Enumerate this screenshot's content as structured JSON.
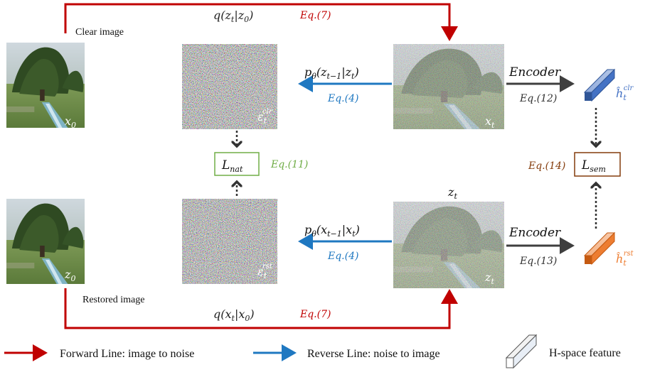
{
  "labels": {
    "clear_image": "Clear image",
    "restored_image": "Restored image",
    "x0": "x",
    "x0_sub": "0",
    "z0": "z",
    "z0_sub": "0",
    "xt": "x",
    "xt_sub": "t",
    "zt": "z",
    "zt_sub": "t",
    "zt_top": "z",
    "zt_top_sub": "t",
    "eps_clr_base": "ε",
    "eps_clr_sub": "t",
    "eps_clr_sup": "clr",
    "eps_rst_base": "ε",
    "eps_rst_sub": "t",
    "eps_rst_sup": "rst",
    "h_clr_base": "ĥ",
    "h_clr_sub": "t",
    "h_clr_sup": "clr",
    "h_rst_base": "ĥ",
    "h_rst_sub": "t",
    "h_rst_sup": "rst"
  },
  "equations": {
    "q_top": "q(z",
    "q_top_sub": "t",
    "q_top_mid": "|z",
    "q_top_sub2": "0",
    "q_top_end": ")",
    "q_top_ref": "Eq.(7)",
    "q_bottom": "q(x",
    "q_bottom_sub": "t",
    "q_bottom_mid": "|x",
    "q_bottom_sub2": "0",
    "q_bottom_end": ")",
    "q_bottom_ref": "Eq.(7)",
    "p_top_a": "p",
    "p_top_theta": "θ",
    "p_top_b": "(z",
    "p_top_sub1": "t−1",
    "p_top_c": "|z",
    "p_top_sub2": "t",
    "p_top_d": ")",
    "p_top_ref": "Eq.(4)",
    "p_bottom_a": "p",
    "p_bottom_theta": "θ",
    "p_bottom_b": "(x",
    "p_bottom_sub1": "t−1",
    "p_bottom_c": "|x",
    "p_bottom_sub2": "t",
    "p_bottom_d": ")",
    "p_bottom_ref": "Eq.(4)",
    "encoder_top": "Encoder",
    "encoder_top_ref": "Eq.(12)",
    "encoder_bottom": "Encoder",
    "encoder_bottom_ref": "Eq.(13)",
    "l_nat": "L",
    "l_nat_sub": "nat",
    "l_nat_ref": "Eq.(11)",
    "l_sem": "L",
    "l_sem_sub": "sem",
    "l_sem_ref": "Eq.(14)"
  },
  "legend": {
    "forward": "Forward Line: image to noise",
    "reverse": "Reverse Line: noise to image",
    "hspace": "H-space feature"
  },
  "colors": {
    "forward": "#c00000",
    "reverse": "#1f78c1",
    "encoder_arrow": "#3f3f3f",
    "l_nat": "#70ad47",
    "l_sem": "#843c0c",
    "feature_clr": "#4472c4",
    "feature_rst": "#ed7d31"
  }
}
